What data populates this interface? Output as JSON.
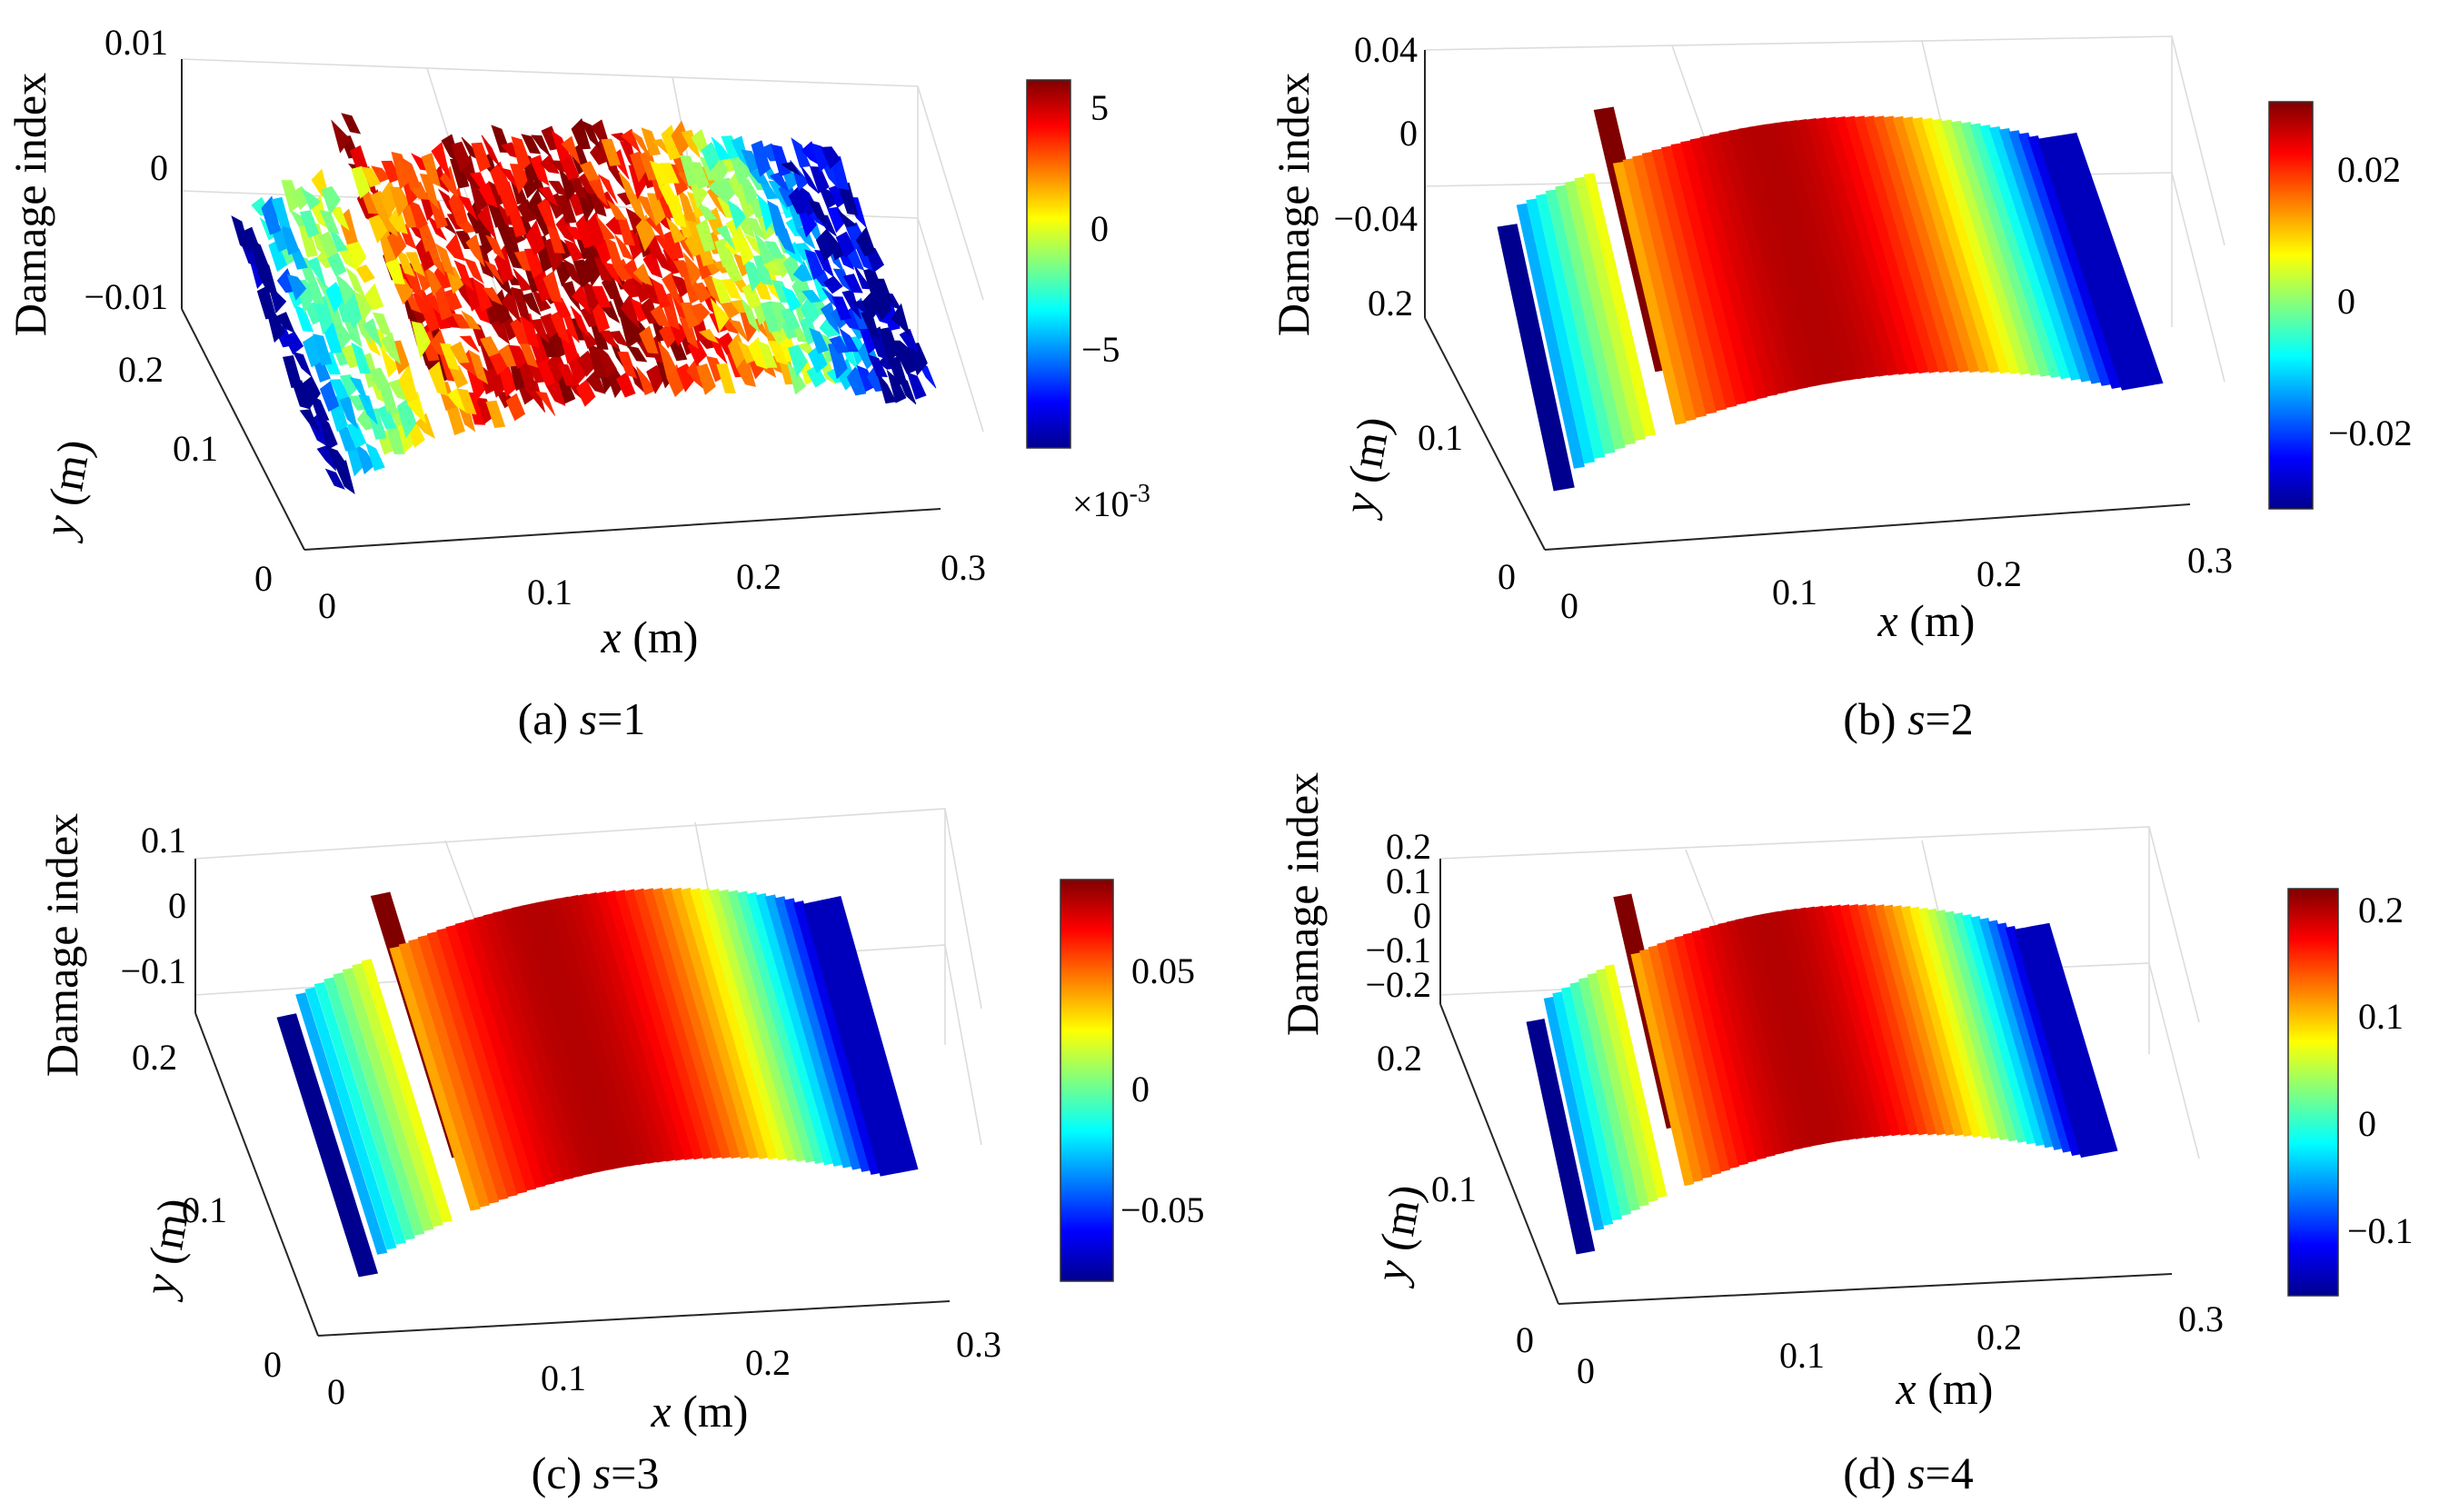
{
  "colormap": [
    "#00008f",
    "#0000ff",
    "#0080ff",
    "#00ffff",
    "#80ff80",
    "#ffff00",
    "#ff8000",
    "#ff0000",
    "#800000"
  ],
  "chart_data": [
    {
      "type": "surface3d",
      "caption_prefix": "(a) ",
      "caption_var": "s",
      "caption_value": "=1",
      "zlabel": "Damage index",
      "xlabel_var": "x",
      "xlabel_unit": " (m)",
      "ylabel_var": "y",
      "ylabel_unit": " (m)",
      "xticks": [
        "0",
        "0.1",
        "0.2",
        "0.3"
      ],
      "yticks": [
        "0",
        "0.1",
        "0.2"
      ],
      "zticks": [
        "0.01",
        "0",
        "−0.01"
      ],
      "zlim": [
        -0.01,
        0.01
      ],
      "colorbar_ticks": [
        "5",
        "0",
        "−5"
      ],
      "colorbar_range": [
        -9,
        6
      ],
      "colorbar_exponent_base": "×10",
      "colorbar_exponent_power": "-3",
      "crack_x": 0.055,
      "noisy": true
    },
    {
      "type": "surface3d",
      "caption_prefix": "(b) ",
      "caption_var": "s",
      "caption_value": "=2",
      "zlabel": "Damage index",
      "xlabel_var": "x",
      "xlabel_unit": " (m)",
      "ylabel_var": "y",
      "ylabel_unit": " (m)",
      "xticks": [
        "0",
        "0.1",
        "0.2",
        "0.3"
      ],
      "yticks": [
        "0.1",
        "0.2"
      ],
      "zticks": [
        "0.04",
        "0",
        "−0.04"
      ],
      "zlim": [
        -0.04,
        0.04
      ],
      "colorbar_ticks": [
        "0.02",
        "0",
        "−0.02"
      ],
      "colorbar_range": [
        -0.03,
        0.03
      ],
      "crack_x": 0.055,
      "noisy": false
    },
    {
      "type": "surface3d",
      "caption_prefix": "(c) ",
      "caption_var": "s",
      "caption_value": "=3",
      "zlabel": "Damage index",
      "xlabel_var": "x",
      "xlabel_unit": " (m)",
      "ylabel_var": "y",
      "ylabel_unit": " (m)",
      "xticks": [
        "0",
        "0.1",
        "0.2",
        "0.3"
      ],
      "yticks": [
        "0",
        "0.1",
        "0.2"
      ],
      "zticks": [
        "0.1",
        "0",
        "−0.1"
      ],
      "zlim": [
        -0.1,
        0.1
      ],
      "colorbar_ticks": [
        "0.05",
        "0",
        "−0.05"
      ],
      "colorbar_range": [
        -0.09,
        0.09
      ],
      "crack_x": 0.055,
      "noisy": false
    },
    {
      "type": "surface3d",
      "caption_prefix": "(d) ",
      "caption_var": "s",
      "caption_value": "=4",
      "zlabel": "Damage index",
      "xlabel_var": "x",
      "xlabel_unit": " (m)",
      "ylabel_var": "y",
      "ylabel_unit": " (m)",
      "xticks": [
        "0",
        "0.1",
        "0.2",
        "0.3"
      ],
      "yticks": [
        "0",
        "0.1",
        "0.2"
      ],
      "zticks": [
        "0.2",
        "0.1",
        "0",
        "−0.1",
        "−0.2"
      ],
      "zlim": [
        -0.2,
        0.2
      ],
      "colorbar_ticks": [
        "0.2",
        "0.1",
        "0",
        "−0.1"
      ],
      "colorbar_range": [
        -0.16,
        0.22
      ],
      "crack_x": 0.055,
      "noisy": false
    }
  ]
}
